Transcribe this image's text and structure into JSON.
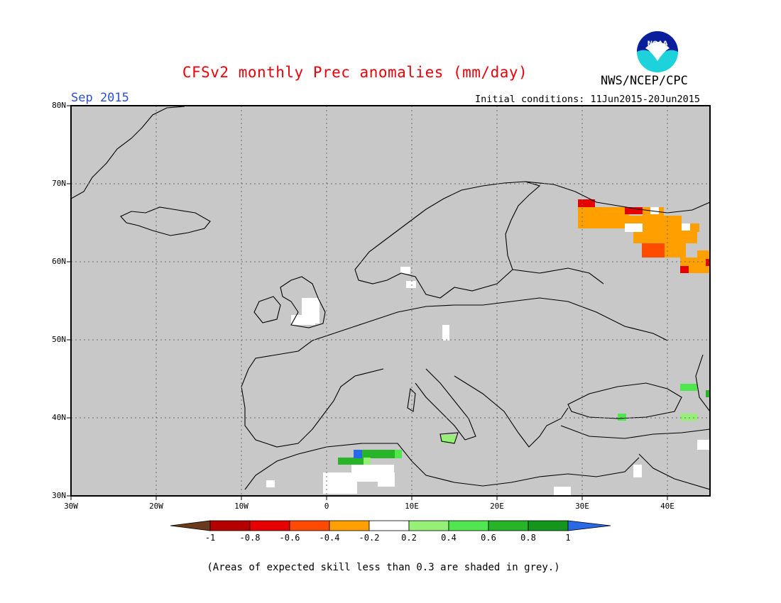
{
  "header": {
    "title": "CFSv2 monthly Prec anomalies (mm/day)",
    "period": "Sep 2015",
    "initial_conditions": "Initial conditions: 11Jun2015-20Jun2015",
    "agency": "NWS/NCEP/CPC",
    "logo_text": "NOAA"
  },
  "map": {
    "region": "Europe",
    "latitude_labels": [
      "80N",
      "70N",
      "60N",
      "50N",
      "40N",
      "30N"
    ],
    "longitude_labels": [
      "30W",
      "20W",
      "10W",
      "0",
      "10E",
      "20E",
      "30E",
      "40E"
    ],
    "background_color": "#c8c8c8",
    "gridlines": "dotted"
  },
  "colorbar": {
    "tick_labels": [
      "-1",
      "-0.8",
      "-0.6",
      "-0.4",
      "-0.2",
      "0.2",
      "0.4",
      "0.6",
      "0.8",
      "1"
    ],
    "colors": [
      "#6b3a1c",
      "#b40000",
      "#e60000",
      "#ff4b00",
      "#ffa000",
      "#ffffff",
      "#96f078",
      "#50e650",
      "#28b428",
      "#14961e",
      "#2869e6"
    ]
  },
  "footnote": "(Areas of expected skill less than 0.3 are shaded in grey.)"
}
